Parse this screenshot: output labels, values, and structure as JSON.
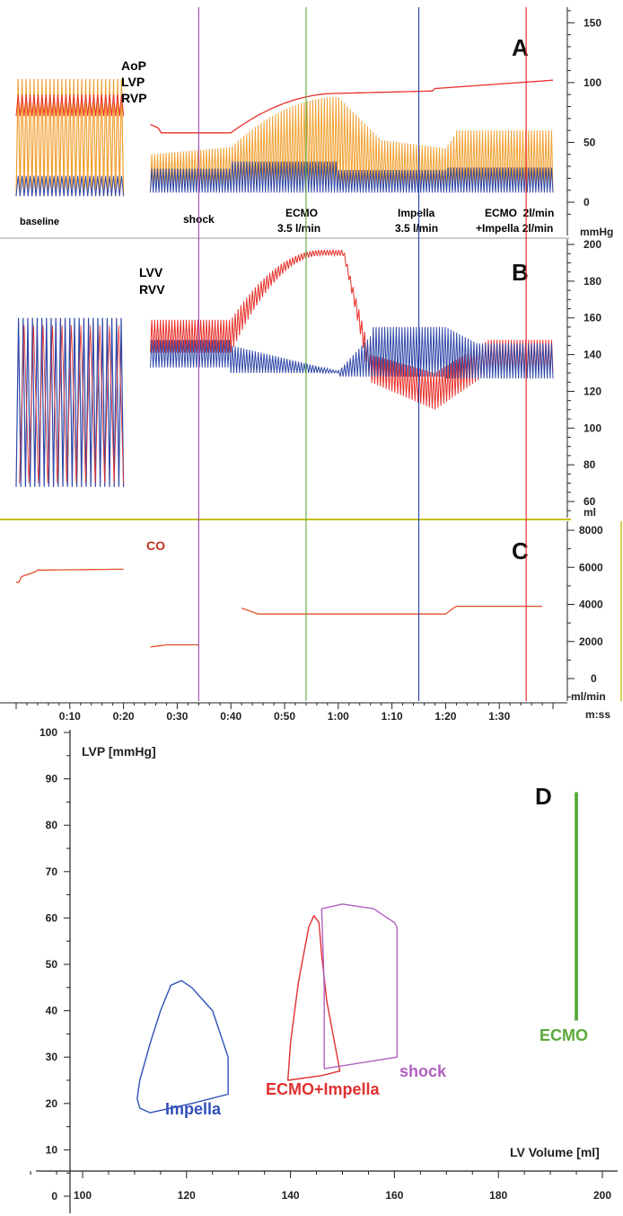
{
  "chart_data": [
    {
      "panel": "A",
      "type": "line",
      "unit": "mmHg",
      "y_ticks": [
        0,
        50,
        100,
        150
      ],
      "ylim": [
        -20,
        175
      ],
      "series": [
        {
          "name": "AoP",
          "color": "#e8302a"
        },
        {
          "name": "LVP",
          "color": "#f0a030"
        },
        {
          "name": "RVP",
          "color": "#3048a8"
        }
      ],
      "annotations": [
        {
          "text": "baseline",
          "color": "#111111"
        },
        {
          "text": "shock",
          "color": "#a040b0"
        },
        {
          "text": "ECMO",
          "text2": "3.5 l/min",
          "color": "#5aa83a"
        },
        {
          "text": "Impella",
          "text2": "3.5 l/min",
          "color": "#2840b0"
        },
        {
          "text": "ECMO  2l/min",
          "text2": "+Impella 2l/min",
          "color": "#e02020"
        }
      ],
      "segments": {
        "baseline": {
          "t": [
            0,
            20
          ],
          "aop": [
            72,
            90
          ],
          "lvp": [
            5,
            103
          ],
          "rvp": [
            5,
            22
          ]
        },
        "shock": {
          "t": [
            25,
            40
          ],
          "aop_mean": 58,
          "lvp": [
            10,
            46
          ],
          "rvp": [
            8,
            30
          ]
        },
        "ecmo": {
          "t": [
            40,
            60
          ],
          "aop_mean": [
            58,
            92
          ],
          "lvp_top": [
            46,
            88
          ]
        },
        "impella": {
          "t": [
            60,
            80
          ],
          "aop_mean": [
            92,
            95
          ],
          "lvp_top": [
            88,
            45
          ]
        },
        "combo": {
          "t": [
            80,
            100
          ],
          "aop_mean": [
            95,
            102
          ],
          "lvp_top": [
            58,
            60
          ]
        }
      }
    },
    {
      "panel": "B",
      "type": "line",
      "unit": "ml",
      "y_ticks": [
        60,
        80,
        100,
        120,
        140,
        160,
        180,
        200
      ],
      "ylim": [
        52,
        202
      ],
      "series": [
        {
          "name": "LVV",
          "color": "#e8302a"
        },
        {
          "name": "RVV",
          "color": "#3048a8"
        }
      ],
      "segments": {
        "baseline": {
          "t": [
            0,
            20
          ],
          "range": [
            68,
            160
          ]
        },
        "shock_lvv": [
          141,
          159
        ],
        "shock_rvv": [
          133,
          148
        ],
        "ecmo_lvv_max": 197,
        "ecmo_rvv": [
          130,
          148
        ],
        "impella_lvv": [
          110,
          140
        ],
        "impella_rvv": [
          128,
          155
        ],
        "combo_lvv": [
          130,
          148
        ],
        "combo_rvv": [
          127,
          146
        ]
      }
    },
    {
      "panel": "C",
      "type": "line",
      "unit": "ml/min",
      "y_ticks": [
        0,
        2000,
        4000,
        6000,
        8000
      ],
      "ylim": [
        -1000,
        8400
      ],
      "series": [
        {
          "name": "CO",
          "color": "#c03020"
        }
      ],
      "x_tick_labels": [
        "0:10",
        "0:20",
        "0:30",
        "0:40",
        "0:50",
        "1:00",
        "1:10",
        "1:20",
        "1:30"
      ],
      "x_unit": "m:ss",
      "steps": [
        {
          "t": [
            0,
            20
          ],
          "co": [
            5200,
            5900
          ]
        },
        {
          "t": [
            25,
            34
          ],
          "co": [
            1500,
            1900
          ]
        },
        {
          "t": [
            42,
            80
          ],
          "co": [
            3800,
            3500
          ]
        },
        {
          "t": [
            80,
            98
          ],
          "co": [
            3900,
            3900
          ]
        }
      ],
      "event_markers": [
        {
          "t": 34,
          "color": "#a040b0"
        },
        {
          "t": 54,
          "color": "#5aa83a"
        },
        {
          "t": 75,
          "color": "#2840b0"
        },
        {
          "t": 95,
          "color": "#e02020"
        }
      ]
    },
    {
      "panel": "D",
      "type": "line",
      "xlabel": "LV Volume [ml]",
      "ylabel": "LVP [mmHg]",
      "xlim": [
        97,
        202
      ],
      "ylim": [
        -2,
        102
      ],
      "x_ticks": [
        100,
        120,
        140,
        160,
        180,
        200
      ],
      "y_ticks": [
        0,
        10,
        20,
        30,
        40,
        50,
        60,
        70,
        80,
        90,
        100
      ],
      "series": [
        {
          "name": "Impella",
          "color": "#3050b8",
          "loop": [
            [
              111,
              19
            ],
            [
              113,
              18
            ],
            [
              121,
              20
            ],
            [
              128,
              22
            ],
            [
              128,
              30
            ],
            [
              125,
              40
            ],
            [
              121,
              45
            ],
            [
              119,
              46.5
            ],
            [
              117,
              45.5
            ],
            [
              115,
              40
            ],
            [
              113,
              33
            ],
            [
              111,
              25
            ],
            [
              110.5,
              21
            ]
          ]
        },
        {
          "name": "ECMO+Impella",
          "color": "#e03030",
          "loop": [
            [
              139.5,
              25
            ],
            [
              146,
              26
            ],
            [
              149.5,
              27
            ],
            [
              149,
              30
            ],
            [
              147,
              42
            ],
            [
              146,
              52
            ],
            [
              145.5,
              59
            ],
            [
              144.5,
              60.5
            ],
            [
              143.5,
              58
            ],
            [
              141.5,
              46
            ],
            [
              140,
              33
            ]
          ]
        },
        {
          "name": "shock",
          "color": "#b060c0",
          "loop": [
            [
              146.5,
              27.5
            ],
            [
              160.5,
              30
            ],
            [
              160.5,
              58
            ],
            [
              160,
              59
            ],
            [
              156,
              62
            ],
            [
              150,
              63
            ],
            [
              146,
              62
            ],
            [
              146.5,
              45
            ]
          ]
        },
        {
          "name": "ECMO",
          "color": "#5aa83a",
          "loop": [
            [
              194.8,
              38
            ],
            [
              194.8,
              87
            ],
            [
              195.2,
              87
            ],
            [
              195.2,
              38
            ]
          ]
        }
      ]
    }
  ]
}
